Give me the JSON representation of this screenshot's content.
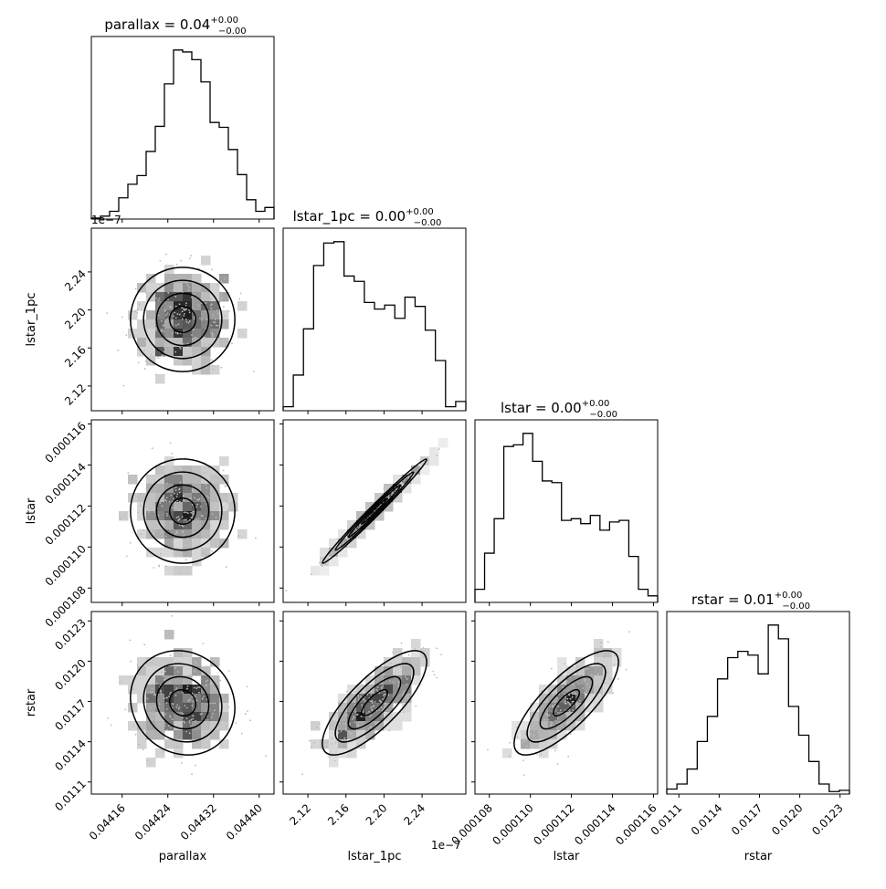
{
  "figure": {
    "kind": "corner-plot"
  },
  "chart_data": {
    "type": "corner",
    "parameters": [
      "parallax",
      "lstar_1pc",
      "lstar",
      "rstar"
    ],
    "titles": [
      {
        "name": "parallax",
        "value": "0.04",
        "plus": "+0.00",
        "minus": "−0.00"
      },
      {
        "name": "lstar_1pc",
        "value": "0.00",
        "plus": "+0.00",
        "minus": "−0.00"
      },
      {
        "name": "lstar",
        "value": "0.00",
        "plus": "+0.00",
        "minus": "−0.00"
      },
      {
        "name": "rstar",
        "value": "0.01",
        "plus": "+0.00",
        "minus": "−0.00"
      }
    ],
    "axis_labels": [
      "parallax",
      "lstar_1pc",
      "lstar",
      "rstar"
    ],
    "offset_labels": {
      "lstar_1pc": "1e−7"
    },
    "ranges": {
      "parallax": [
        0.044106,
        0.044426
      ],
      "lstar_1pc": [
        2.094,
        2.286
      ],
      "lstar": [
        0.0001073,
        0.0001162
      ],
      "rstar": [
        0.01101,
        0.01237
      ]
    },
    "ticks": {
      "parallax": {
        "values": [
          0.04416,
          0.04424,
          0.04432,
          0.0444
        ],
        "labels": [
          "0.04416",
          "0.04424",
          "0.04432",
          "0.04440"
        ]
      },
      "lstar_1pc": {
        "values": [
          2.12,
          2.16,
          2.2,
          2.24
        ],
        "labels": [
          "2.12",
          "2.16",
          "2.20",
          "2.24"
        ]
      },
      "lstar": {
        "values": [
          0.000108,
          0.00011,
          0.000112,
          0.000114,
          0.000116
        ],
        "labels": [
          "0.000108",
          "0.000110",
          "0.000112",
          "0.000114",
          "0.000116"
        ]
      },
      "rstar": {
        "values": [
          0.0111,
          0.0114,
          0.0117,
          0.012,
          0.0123
        ],
        "labels": [
          "0.0111",
          "0.0114",
          "0.0117",
          "0.0120",
          "0.0123"
        ]
      }
    },
    "histograms": {
      "parallax": [
        1,
        3,
        8,
        22,
        36,
        45,
        70,
        96,
        140,
        175,
        173,
        165,
        142,
        100,
        95,
        72,
        46,
        20,
        8,
        12
      ],
      "lstar_1pc": [
        3,
        27,
        62,
        110,
        127,
        128,
        102,
        98,
        82,
        77,
        80,
        70,
        86,
        79,
        61,
        38,
        3,
        7
      ],
      "lstar": [
        8,
        30,
        51,
        95,
        96,
        103,
        86,
        74,
        73,
        50,
        51,
        48,
        53,
        44,
        49,
        50,
        28,
        8,
        4
      ],
      "rstar": [
        4,
        8,
        20,
        42,
        62,
        92,
        109,
        114,
        111,
        96,
        135,
        124,
        70,
        47,
        26,
        8,
        2,
        3
      ]
    },
    "pairs": [
      {
        "x": "parallax",
        "y": "lstar_1pc",
        "correlation": 0.0
      },
      {
        "x": "parallax",
        "y": "lstar",
        "correlation": 0.0
      },
      {
        "x": "lstar_1pc",
        "y": "lstar",
        "correlation": 0.99
      },
      {
        "x": "parallax",
        "y": "rstar",
        "correlation": -0.1
      },
      {
        "x": "lstar_1pc",
        "y": "rstar",
        "correlation": 0.78
      },
      {
        "x": "lstar",
        "y": "rstar",
        "correlation": 0.78
      }
    ]
  }
}
